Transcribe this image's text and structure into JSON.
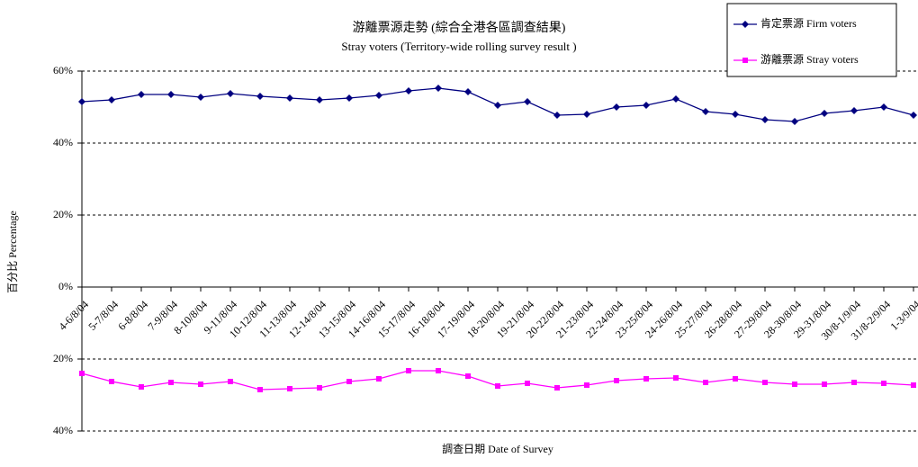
{
  "chart_data": {
    "type": "line",
    "title": "游離票源走勢 (綜合全港各區調查結果)",
    "subtitle": "Stray voters (Territory-wide rolling survey result )",
    "x_label": "調查日期 Date of Survey",
    "y_label": "百分比 Percentage",
    "categories": [
      "4-6/8/04",
      "5-7/8/04",
      "6-8/8/04",
      "7-9/8/04",
      "8-10/8/04",
      "9-11/8/04",
      "10-12/8/04",
      "11-13/8/04",
      "12-14/8/04",
      "13-15/8/04",
      "14-16/8/04",
      "15-17/8/04",
      "16-18/8/04",
      "17-19/8/04",
      "18-20/8/04",
      "19-21/8/04",
      "20-22/8/04",
      "21-23/8/04",
      "22-24/8/04",
      "23-25/8/04",
      "24-26/8/04",
      "25-27/8/04",
      "26-28/8/04",
      "27-29/8/04",
      "28-30/8/04",
      "29-31/8/04",
      "30/8-1/9/04",
      "31/8-2/9/04",
      "1-3/9/04"
    ],
    "series": [
      {
        "name": "肯定票源 Firm voters",
        "color": "#000080",
        "marker": "diamond",
        "values": [
          51.5,
          52,
          53.5,
          53.5,
          52.75,
          53.75,
          53,
          52.5,
          52,
          52.5,
          53.25,
          54.5,
          55.25,
          54.25,
          50.5,
          51.5,
          47.75,
          48,
          50,
          50.5,
          52.25,
          48.75,
          48,
          46.5,
          46,
          48.25,
          49,
          50,
          47.75
        ]
      },
      {
        "name": "游離票源 Stray voters",
        "color": "#ff00ff",
        "marker": "square",
        "values": [
          -24,
          -26.25,
          -27.75,
          -26.5,
          -27,
          -26.25,
          -28.5,
          -28.25,
          -28,
          -26.25,
          -25.5,
          -23.25,
          -23.25,
          -24.75,
          -27.5,
          -26.75,
          -28,
          -27.25,
          -26,
          -25.5,
          -25.25,
          -26.5,
          -25.5,
          -26.5,
          -27,
          -27,
          -26.5,
          -26.75,
          -27.25
        ]
      }
    ],
    "ylim": [
      -40,
      60
    ],
    "yticks": [
      {
        "value": -40,
        "label": "40%"
      },
      {
        "value": -20,
        "label": "20%"
      },
      {
        "value": 0,
        "label": "0%"
      },
      {
        "value": 20,
        "label": "20%"
      },
      {
        "value": 40,
        "label": "40%"
      },
      {
        "value": 60,
        "label": "60%"
      }
    ],
    "grid": true,
    "legend": "top-right"
  }
}
